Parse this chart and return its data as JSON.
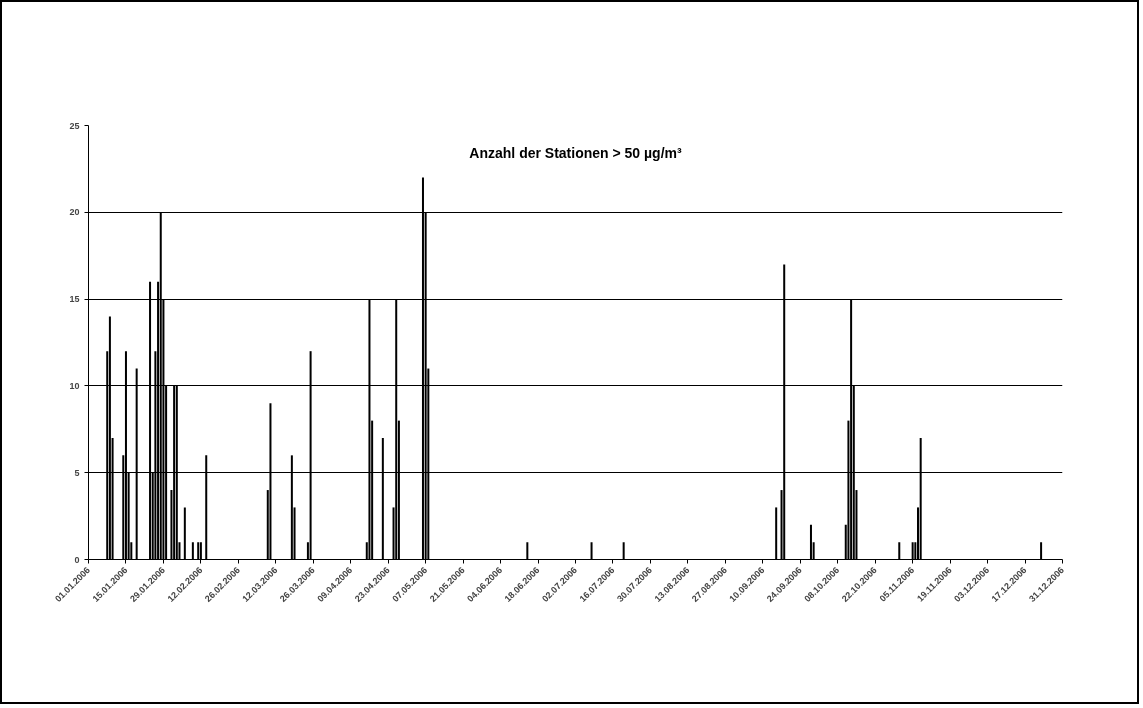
{
  "chart_data": {
    "type": "bar",
    "title": "Anzahl der Stationen > 50 µg/m³",
    "x": [
      "2006-01-08",
      "2006-01-09",
      "2006-01-10",
      "2006-01-14",
      "2006-01-15",
      "2006-01-16",
      "2006-01-17",
      "2006-01-19",
      "2006-01-24",
      "2006-01-25",
      "2006-01-26",
      "2006-01-27",
      "2006-01-28",
      "2006-01-29",
      "2006-01-30",
      "2006-02-01",
      "2006-02-02",
      "2006-02-03",
      "2006-02-04",
      "2006-02-06",
      "2006-02-09",
      "2006-02-11",
      "2006-02-12",
      "2006-02-14",
      "2006-03-09",
      "2006-03-10",
      "2006-03-18",
      "2006-03-19",
      "2006-03-24",
      "2006-03-25",
      "2006-04-15",
      "2006-04-16",
      "2006-04-17",
      "2006-04-21",
      "2006-04-25",
      "2006-04-26",
      "2006-04-27",
      "2006-05-06",
      "2006-05-07",
      "2006-05-08",
      "2006-06-14",
      "2006-07-08",
      "2006-07-20",
      "2006-09-15",
      "2006-09-17",
      "2006-09-18",
      "2006-09-28",
      "2006-09-29",
      "2006-10-11",
      "2006-10-12",
      "2006-10-13",
      "2006-10-14",
      "2006-10-15",
      "2006-10-31",
      "2006-11-05",
      "2006-11-06",
      "2006-11-07",
      "2006-11-08",
      "2006-12-23"
    ],
    "values": [
      12,
      14,
      7,
      6,
      12,
      5,
      1,
      11,
      16,
      5,
      12,
      16,
      20,
      15,
      10,
      4,
      10,
      10,
      1,
      3,
      1,
      1,
      1,
      6,
      4,
      9,
      6,
      3,
      1,
      12,
      1,
      15,
      8,
      7,
      3,
      15,
      8,
      22,
      20,
      11,
      1,
      1,
      1,
      3,
      4,
      17,
      2,
      1,
      2,
      8,
      15,
      10,
      4,
      1,
      1,
      1,
      3,
      7,
      1
    ],
    "color": "#000000",
    "xlim": [
      "2006-01-01",
      "2006-12-31"
    ],
    "xticks": [
      {
        "value": "2006-01-01",
        "label": "01.01.2006"
      },
      {
        "value": "2006-01-15",
        "label": "15.01.2006"
      },
      {
        "value": "2006-01-29",
        "label": "29.01.2006"
      },
      {
        "value": "2006-02-12",
        "label": "12.02.2006"
      },
      {
        "value": "2006-02-26",
        "label": "26.02.2006"
      },
      {
        "value": "2006-03-12",
        "label": "12.03.2006"
      },
      {
        "value": "2006-03-26",
        "label": "26.03.2006"
      },
      {
        "value": "2006-04-09",
        "label": "09.04.2006"
      },
      {
        "value": "2006-04-23",
        "label": "23.04.2006"
      },
      {
        "value": "2006-05-07",
        "label": "07.05.2006"
      },
      {
        "value": "2006-05-21",
        "label": "21.05.2006"
      },
      {
        "value": "2006-06-04",
        "label": "04.06.2006"
      },
      {
        "value": "2006-06-18",
        "label": "18.06.2006"
      },
      {
        "value": "2006-07-02",
        "label": "02.07.2006"
      },
      {
        "value": "2006-07-16",
        "label": "16.07.2006"
      },
      {
        "value": "2006-07-30",
        "label": "30.07.2006"
      },
      {
        "value": "2006-08-13",
        "label": "13.08.2006"
      },
      {
        "value": "2006-08-27",
        "label": "27.08.2006"
      },
      {
        "value": "2006-09-10",
        "label": "10.09.2006"
      },
      {
        "value": "2006-09-24",
        "label": "24.09.2006"
      },
      {
        "value": "2006-10-08",
        "label": "08.10.2006"
      },
      {
        "value": "2006-10-22",
        "label": "22.10.2006"
      },
      {
        "value": "2006-11-05",
        "label": "05.11.2006"
      },
      {
        "value": "2006-11-19",
        "label": "19.11.2006"
      },
      {
        "value": "2006-12-03",
        "label": "03.12.2006"
      },
      {
        "value": "2006-12-17",
        "label": "17.12.2006"
      },
      {
        "value": "2006-12-31",
        "label": "31.12.2006"
      }
    ],
    "ylim": [
      0,
      25
    ],
    "yticks": [
      0,
      5,
      10,
      15,
      20,
      25
    ],
    "grid": "y"
  }
}
